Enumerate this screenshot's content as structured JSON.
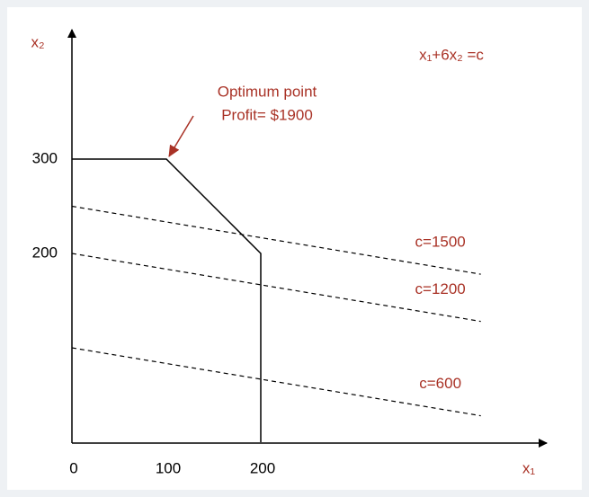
{
  "chart_data": {
    "type": "line",
    "x_label": "x₁",
    "y_label": "x₂",
    "formula": "x₁+6x₂ =c",
    "annotation": {
      "lines": [
        "Optimum point",
        "Profit= $1900"
      ],
      "x": 100,
      "y": 300
    },
    "xlim": [
      0,
      495
    ],
    "ylim": [
      0,
      428
    ],
    "xticks": [
      0,
      100,
      200
    ],
    "yticks": [
      200,
      300
    ],
    "series": [
      {
        "x": [
          0,
          100,
          200,
          200
        ],
        "values": [
          300,
          300,
          200,
          0
        ],
        "color": "#000000",
        "line_style": "solid"
      },
      {
        "name": "c=1500",
        "x": [
          0,
          433
        ],
        "values": [
          250,
          178
        ],
        "color": "#000000",
        "line_style": "dashed"
      },
      {
        "name": "c=1200",
        "x": [
          0,
          433
        ],
        "values": [
          200,
          128
        ],
        "color": "#000000",
        "line_style": "dashed"
      },
      {
        "name": "c=600",
        "x": [
          0,
          433
        ],
        "values": [
          100,
          28
        ],
        "color": "#000000",
        "line_style": "dashed"
      }
    ],
    "label_color": "#a93226"
  }
}
